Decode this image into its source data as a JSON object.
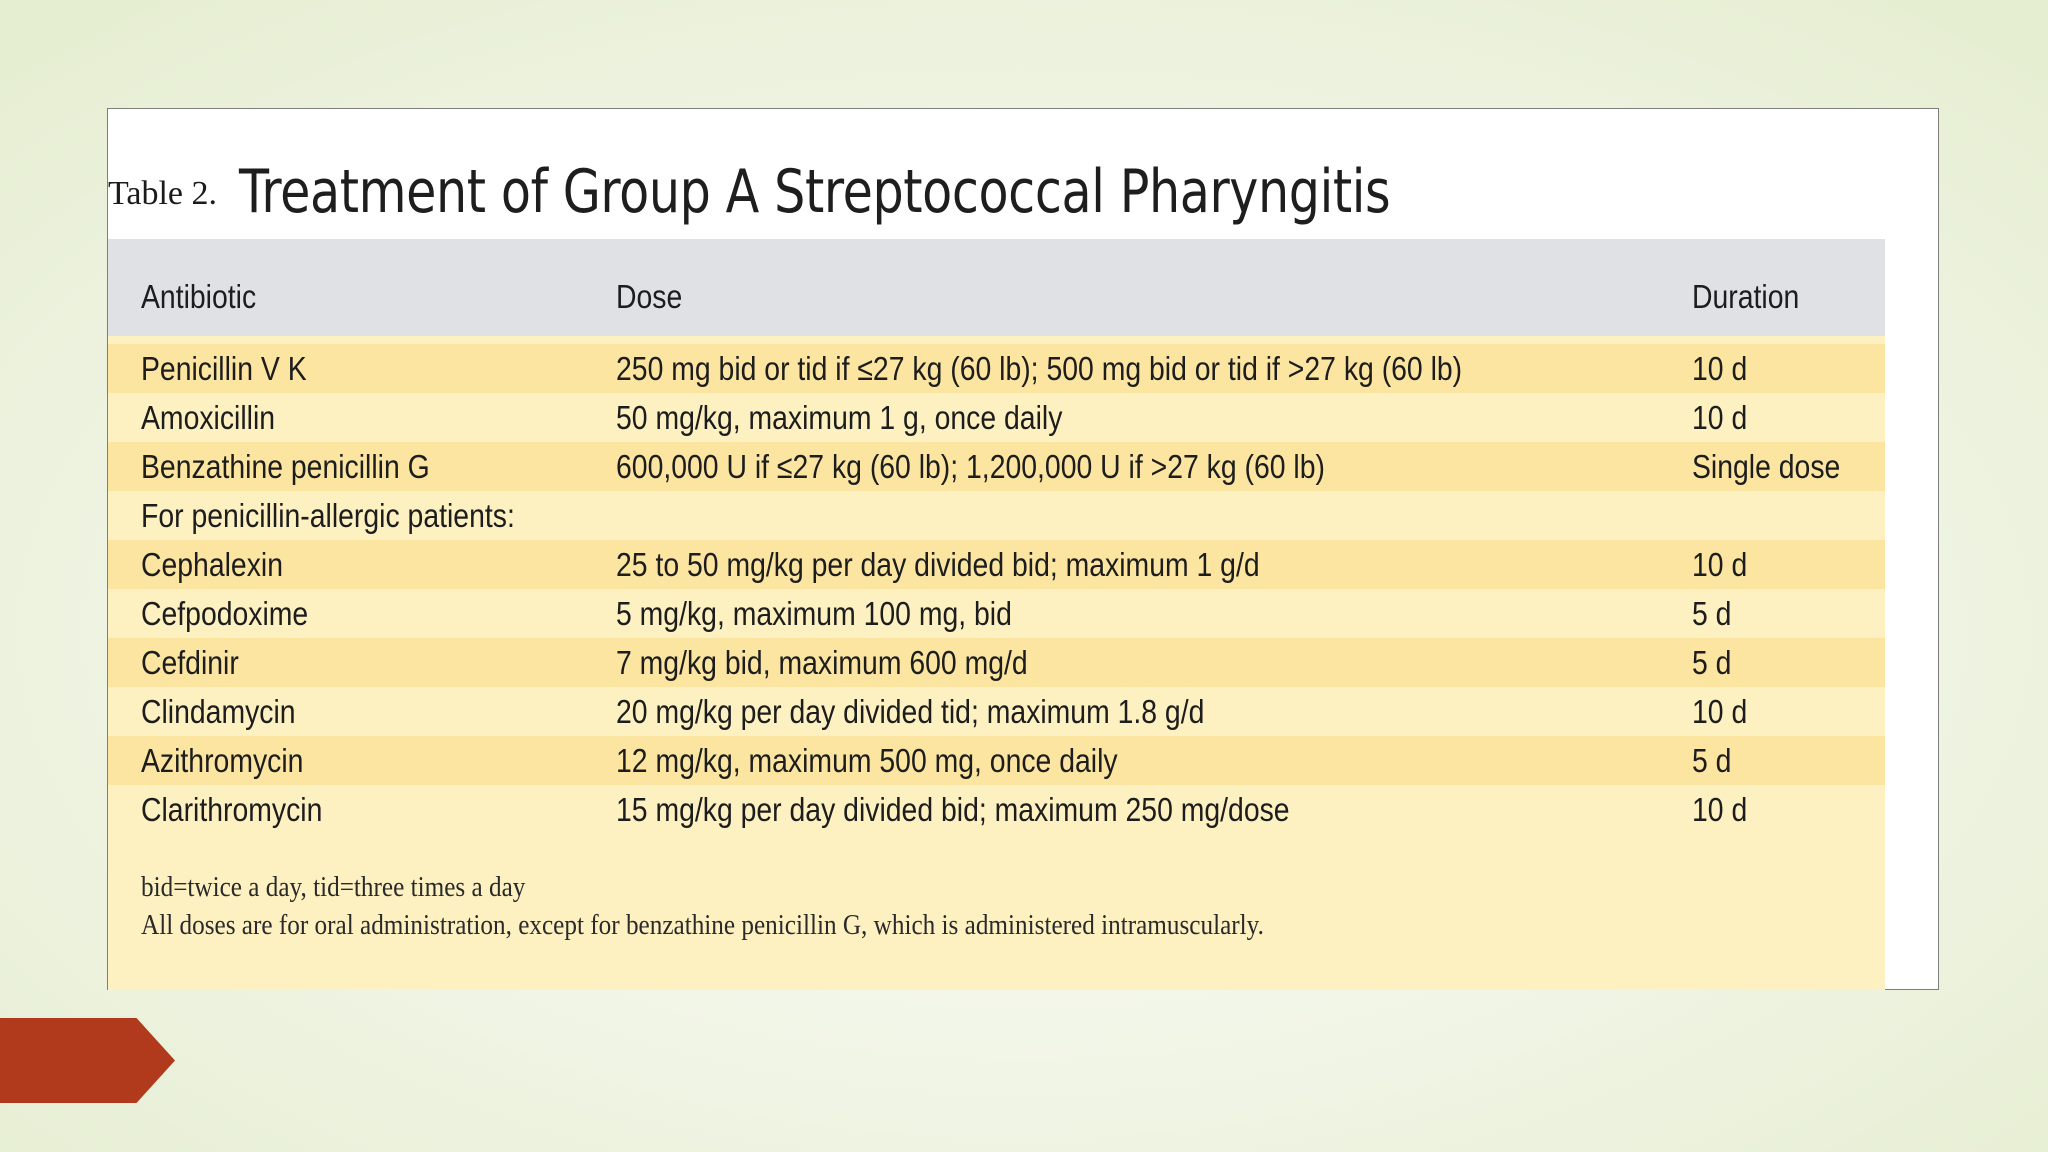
{
  "table": {
    "label": "Table 2.",
    "title": "Treatment of Group A Streptococcal Pharyngitis",
    "headers": {
      "antibiotic": "Antibiotic",
      "dose": "Dose",
      "duration": "Duration"
    },
    "rows": [
      {
        "antibiotic": "Penicillin V K",
        "dose": "250 mg bid or tid if ≤27 kg (60 lb); 500 mg bid or tid if >27 kg (60 lb)",
        "duration": "10 d"
      },
      {
        "antibiotic": "Amoxicillin",
        "dose": "50 mg/kg, maximum 1 g, once daily",
        "duration": "10 d"
      },
      {
        "antibiotic": "Benzathine penicillin G",
        "dose": "600,000 U if ≤27 kg (60 lb); 1,200,000 U if >27 kg (60 lb)",
        "duration": "Single dose"
      },
      {
        "antibiotic": "For penicillin-allergic patients:",
        "dose": "",
        "duration": ""
      },
      {
        "antibiotic": "Cephalexin",
        "dose": "25 to 50 mg/kg per day divided bid; maximum 1 g/d",
        "duration": "10 d"
      },
      {
        "antibiotic": "Cefpodoxime",
        "dose": "5 mg/kg, maximum 100 mg, bid",
        "duration": "5 d"
      },
      {
        "antibiotic": "Cefdinir",
        "dose": "7 mg/kg bid, maximum 600 mg/d",
        "duration": "5 d"
      },
      {
        "antibiotic": "Clindamycin",
        "dose": "20 mg/kg per day divided tid; maximum 1.8 g/d",
        "duration": "10 d"
      },
      {
        "antibiotic": "Azithromycin",
        "dose": "12 mg/kg, maximum 500 mg, once daily",
        "duration": "5 d"
      },
      {
        "antibiotic": "Clarithromycin",
        "dose": "15 mg/kg per day divided bid; maximum 250 mg/dose",
        "duration": "10 d"
      }
    ],
    "footnotes": [
      "bid=twice a day, tid=three times a day",
      "All doses are for oral administration, except for benzathine penicillin G, which is administered intramuscularly."
    ]
  },
  "colors": {
    "header_bg": "#dfe1e5",
    "row_shade": "#fbe5a0",
    "row_light": "#fdf0c1",
    "nav_arrow": "#b23a1c"
  },
  "icons": {
    "nav_arrow": "next-slide-arrow-icon"
  }
}
